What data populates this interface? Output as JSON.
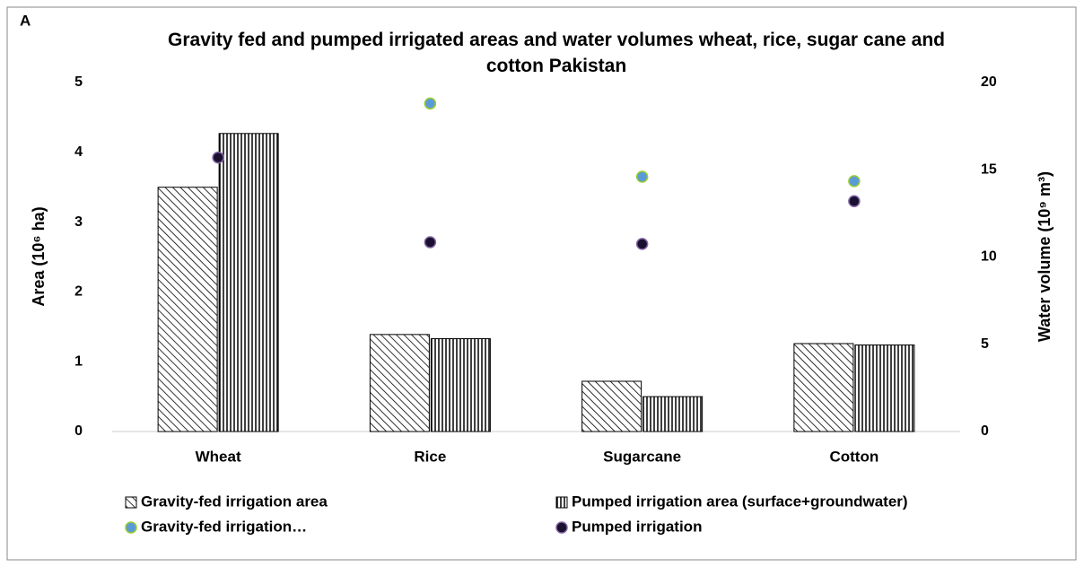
{
  "chart_data": {
    "type": "bar",
    "panel_label": "A",
    "title": "Gravity fed and pumped irrigated areas and water volumes wheat, rice, sugar cane and cotton Pakistan",
    "ylabel": "Area  (10⁶ ha)",
    "y2label": "Water volume (10⁹ m³)",
    "categories": [
      "Wheat",
      "Rice",
      "Sugarcane",
      "Cotton"
    ],
    "series": [
      {
        "name": "Gravity-fed irrigation area",
        "type": "bar",
        "pattern": "diagonal",
        "color": "#000000",
        "values": [
          3.5,
          1.39,
          0.72,
          1.26
        ]
      },
      {
        "name": "Pumped irrigation area (surface+groundwater)",
        "type": "bar",
        "pattern": "vertical",
        "color": "#000000",
        "values": [
          4.27,
          1.33,
          0.5,
          1.24
        ]
      },
      {
        "name": "Gravity-fed irrigation…",
        "type": "scatter",
        "axis": "y2",
        "color": "#5b9bd5",
        "values": [
          null,
          18.8,
          14.6,
          14.35
        ]
      },
      {
        "name": "Pumped irrigation",
        "type": "scatter",
        "axis": "y2",
        "color": "#1a1030",
        "values": [
          15.7,
          10.85,
          10.75,
          13.2
        ]
      }
    ],
    "ylim": [
      0,
      5
    ],
    "yticks": [
      0,
      1,
      2,
      3,
      4,
      5
    ],
    "y2lim": [
      0,
      20
    ],
    "y2ticks": [
      0,
      5,
      10,
      15,
      20
    ],
    "grid": false
  }
}
